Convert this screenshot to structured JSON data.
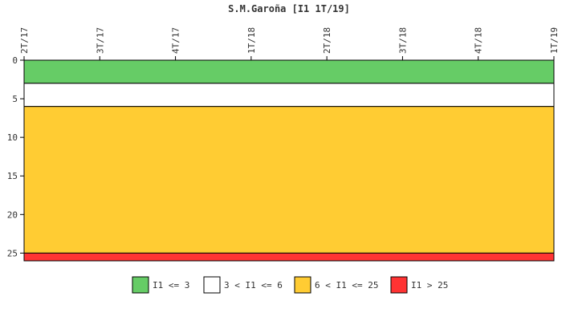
{
  "chart_data": {
    "type": "area",
    "title": "S.M.Garoña [I1 1T/19]",
    "x_ticks": [
      "2T/17",
      "3T/17",
      "4T/17",
      "1T/18",
      "2T/18",
      "3T/18",
      "4T/18",
      "1T/19"
    ],
    "y_ticks": [
      0,
      5,
      10,
      15,
      20,
      25
    ],
    "ylim": [
      0,
      26
    ],
    "y_inverted": true,
    "grid": false,
    "legend_position": "bottom",
    "bands": [
      {
        "label": "I1 <= 3",
        "from": 0,
        "to": 3,
        "color": "#66cc66"
      },
      {
        "label": "3 < I1 <= 6",
        "from": 3,
        "to": 6,
        "color": "#ffffff"
      },
      {
        "label": "6 < I1 <= 25",
        "from": 6,
        "to": 25,
        "color": "#ffcc33"
      },
      {
        "label": "I1 > 25",
        "from": 25,
        "to": 26,
        "color": "#ff3333"
      }
    ]
  }
}
